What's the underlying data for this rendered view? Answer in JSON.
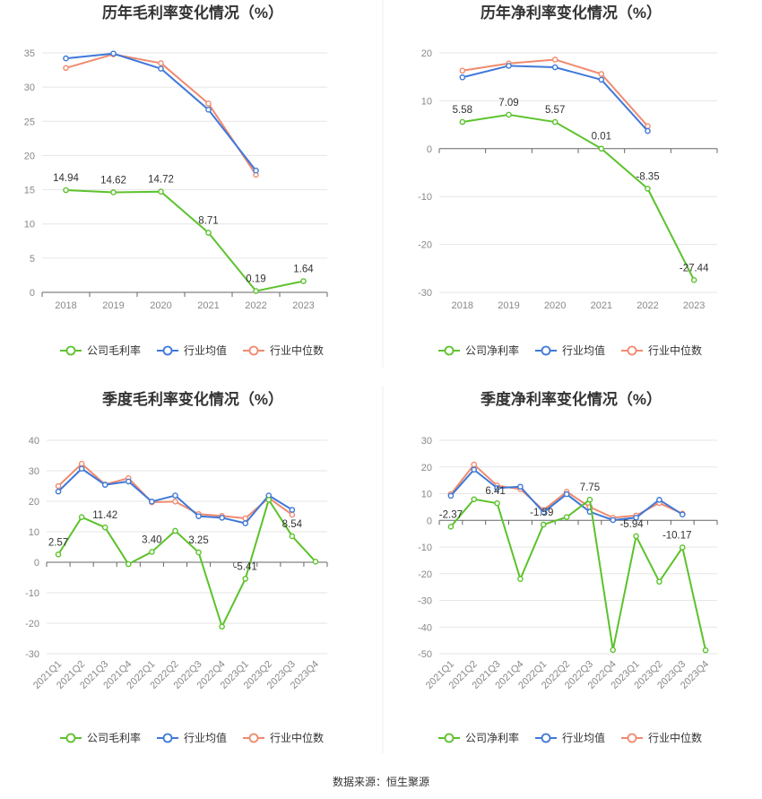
{
  "source_note": "数据来源：恒生聚源",
  "colors": {
    "company": "#5cc22c",
    "industry_avg": "#3f78d8",
    "industry_median": "#f08a6e",
    "grid": "#e6e6e6",
    "axis": "#666666"
  },
  "chart_data": [
    {
      "type": "line",
      "title": "历年毛利率变化情况（%）",
      "categories": [
        "2018",
        "2019",
        "2020",
        "2021",
        "2022",
        "2023"
      ],
      "ylim": [
        0,
        35
      ],
      "yticks": [
        0,
        5,
        10,
        15,
        20,
        25,
        30,
        35
      ],
      "grid": true,
      "legend": "bottom",
      "rotate_xlabels": false,
      "series": [
        {
          "name": "公司毛利率",
          "key": "company",
          "values": [
            14.94,
            14.62,
            14.72,
            8.71,
            0.19,
            1.64
          ],
          "labels": [
            "14.94",
            "14.62",
            "14.72",
            "8.71",
            "0.19",
            "1.64"
          ]
        },
        {
          "name": "行业均值",
          "key": "industry_avg",
          "values": [
            34.2,
            34.9,
            32.7,
            26.7,
            17.8,
            null
          ]
        },
        {
          "name": "行业中位数",
          "key": "industry_median",
          "values": [
            32.8,
            34.8,
            33.5,
            27.6,
            17.2,
            null
          ]
        }
      ]
    },
    {
      "type": "line",
      "title": "历年净利率变化情况（%）",
      "categories": [
        "2018",
        "2019",
        "2020",
        "2021",
        "2022",
        "2023"
      ],
      "ylim": [
        -30,
        20
      ],
      "yticks": [
        -30,
        -20,
        -10,
        0,
        10,
        20
      ],
      "grid": true,
      "legend": "bottom",
      "rotate_xlabels": false,
      "series": [
        {
          "name": "公司净利率",
          "key": "company",
          "values": [
            5.58,
            7.09,
            5.57,
            0.01,
            -8.35,
            -27.44
          ],
          "labels": [
            "5.58",
            "7.09",
            "5.57",
            "0.01",
            "-8.35",
            "-27.44"
          ]
        },
        {
          "name": "行业均值",
          "key": "industry_avg",
          "values": [
            14.9,
            17.3,
            17.0,
            14.4,
            3.7,
            null
          ]
        },
        {
          "name": "行业中位数",
          "key": "industry_median",
          "values": [
            16.3,
            17.8,
            18.6,
            15.6,
            4.7,
            null
          ]
        }
      ]
    },
    {
      "type": "line",
      "title": "季度毛利率变化情况（%）",
      "categories": [
        "2021Q1",
        "2021Q2",
        "2021Q3",
        "2021Q4",
        "2022Q1",
        "2022Q2",
        "2022Q3",
        "2022Q4",
        "2023Q1",
        "2023Q2",
        "2023Q3",
        "2023Q4"
      ],
      "ylim": [
        -30,
        40
      ],
      "yticks": [
        -30,
        -20,
        -10,
        0,
        10,
        20,
        30,
        40
      ],
      "grid": true,
      "legend": "bottom",
      "rotate_xlabels": true,
      "series": [
        {
          "name": "公司毛利率",
          "key": "company",
          "values": [
            2.57,
            14.8,
            11.42,
            -0.6,
            3.4,
            10.3,
            3.25,
            -21.1,
            -5.41,
            20.5,
            8.54,
            0.2
          ],
          "labels": [
            "2.57",
            null,
            "11.42",
            null,
            "3.40",
            null,
            "3.25",
            null,
            "-5.41",
            null,
            "8.54",
            null
          ]
        },
        {
          "name": "行业均值",
          "key": "industry_avg",
          "values": [
            23.2,
            30.7,
            25.4,
            26.5,
            19.9,
            21.9,
            15.1,
            14.6,
            12.8,
            21.9,
            17.2,
            null
          ]
        },
        {
          "name": "行业中位数",
          "key": "industry_median",
          "values": [
            25.0,
            32.3,
            25.5,
            27.6,
            19.7,
            19.9,
            15.8,
            15.2,
            14.4,
            21.1,
            15.6,
            null
          ]
        }
      ]
    },
    {
      "type": "line",
      "title": "季度净利率变化情况（%）",
      "categories": [
        "2021Q1",
        "2021Q2",
        "2021Q3",
        "2021Q4",
        "2022Q1",
        "2022Q2",
        "2022Q3",
        "2022Q4",
        "2023Q1",
        "2023Q2",
        "2023Q3",
        "2023Q4"
      ],
      "ylim": [
        -50,
        30
      ],
      "yticks": [
        -50,
        -40,
        -30,
        -20,
        -10,
        0,
        10,
        20,
        30
      ],
      "grid": true,
      "legend": "bottom",
      "rotate_xlabels": true,
      "series": [
        {
          "name": "公司净利率",
          "key": "company",
          "values": [
            -2.37,
            7.9,
            6.41,
            -22.0,
            -1.59,
            1.2,
            7.75,
            -48.6,
            -5.94,
            -23.0,
            -10.17,
            -48.7
          ],
          "labels": [
            "-2.37",
            null,
            "6.41",
            null,
            "-1.59",
            null,
            "7.75",
            null,
            "-5.94",
            null,
            "-10.17",
            null
          ]
        },
        {
          "name": "行业均值",
          "key": "industry_avg",
          "values": [
            9.2,
            19.0,
            12.1,
            12.6,
            3.0,
            9.8,
            3.2,
            0.1,
            1.0,
            7.7,
            2.2,
            null
          ]
        },
        {
          "name": "行业中位数",
          "key": "industry_median",
          "values": [
            9.8,
            20.9,
            13.0,
            11.7,
            3.8,
            10.7,
            5.0,
            1.0,
            1.8,
            6.5,
            2.5,
            null
          ]
        }
      ]
    }
  ]
}
